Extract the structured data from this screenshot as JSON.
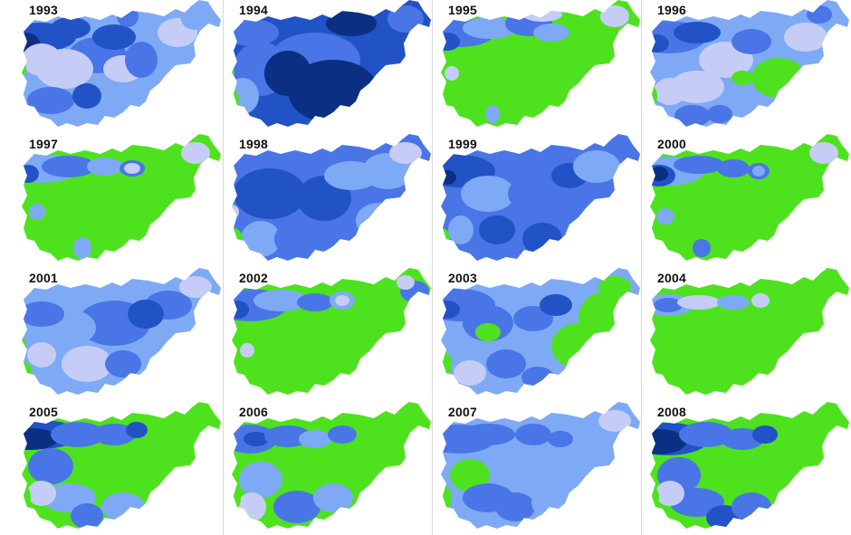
{
  "colors": {
    "c0": "#4ee21e",
    "c1": "#c5cdf6",
    "c2": "#7ea9f5",
    "c3": "#4a75e6",
    "c4": "#2152c6",
    "c5": "#0b2f82"
  },
  "panels": [
    {
      "year": "1993",
      "base": 2,
      "blobs": [
        [
          28,
          35,
          40,
          16,
          4
        ],
        [
          12,
          42,
          16,
          12,
          5
        ],
        [
          62,
          25,
          22,
          12,
          4
        ],
        [
          92,
          55,
          32,
          20,
          3
        ],
        [
          55,
          70,
          32,
          22,
          1
        ],
        [
          30,
          60,
          22,
          18,
          1
        ],
        [
          110,
          35,
          24,
          14,
          4
        ],
        [
          125,
          12,
          12,
          12,
          3
        ],
        [
          40,
          105,
          26,
          15,
          3
        ],
        [
          80,
          100,
          16,
          14,
          4
        ],
        [
          120,
          70,
          22,
          15,
          1
        ],
        [
          140,
          60,
          18,
          20,
          3
        ],
        [
          180,
          30,
          22,
          16,
          1
        ],
        [
          200,
          15,
          16,
          12,
          2
        ],
        [
          5,
          70,
          8,
          10,
          0
        ],
        [
          3,
          100,
          8,
          10,
          0
        ]
      ]
    },
    {
      "year": "1994",
      "base": 4,
      "blobs": [
        [
          100,
          60,
          50,
          30,
          3
        ],
        [
          40,
          70,
          30,
          30,
          3
        ],
        [
          120,
          95,
          50,
          35,
          5
        ],
        [
          140,
          20,
          28,
          14,
          5
        ],
        [
          70,
          75,
          26,
          25,
          5
        ],
        [
          30,
          30,
          30,
          15,
          3
        ],
        [
          20,
          100,
          18,
          20,
          2
        ],
        [
          200,
          15,
          20,
          15,
          3
        ],
        [
          8,
          105,
          8,
          12,
          0
        ],
        [
          5,
          75,
          6,
          8,
          0
        ]
      ]
    },
    {
      "year": "1995",
      "base": 0,
      "blobs": [
        [
          28,
          30,
          40,
          16,
          3
        ],
        [
          15,
          40,
          14,
          10,
          4
        ],
        [
          62,
          25,
          30,
          12,
          2
        ],
        [
          105,
          20,
          26,
          14,
          3
        ],
        [
          130,
          30,
          20,
          10,
          2
        ],
        [
          120,
          10,
          22,
          8,
          1
        ],
        [
          20,
          75,
          8,
          8,
          1
        ],
        [
          65,
          120,
          8,
          10,
          2
        ],
        [
          200,
          12,
          16,
          12,
          1
        ]
      ]
    },
    {
      "year": "1996",
      "base": 2,
      "blobs": [
        [
          28,
          35,
          42,
          18,
          3
        ],
        [
          15,
          42,
          14,
          10,
          4
        ],
        [
          60,
          30,
          26,
          12,
          4
        ],
        [
          92,
          60,
          30,
          20,
          1
        ],
        [
          60,
          90,
          30,
          18,
          1
        ],
        [
          120,
          40,
          22,
          14,
          3
        ],
        [
          150,
          80,
          30,
          22,
          0
        ],
        [
          110,
          80,
          12,
          8,
          0
        ],
        [
          180,
          35,
          24,
          16,
          1
        ],
        [
          195,
          10,
          14,
          10,
          3
        ],
        [
          55,
          122,
          20,
          12,
          3
        ],
        [
          85,
          120,
          14,
          10,
          3
        ],
        [
          30,
          95,
          18,
          15,
          1
        ],
        [
          8,
          100,
          8,
          12,
          0
        ]
      ]
    },
    {
      "year": "1997",
      "base": 0,
      "blobs": [
        [
          30,
          32,
          40,
          16,
          2
        ],
        [
          15,
          38,
          12,
          10,
          4
        ],
        [
          60,
          30,
          30,
          12,
          3
        ],
        [
          100,
          30,
          20,
          10,
          2
        ],
        [
          130,
          32,
          14,
          9,
          3
        ],
        [
          130,
          32,
          9,
          6,
          1
        ],
        [
          25,
          80,
          9,
          9,
          2
        ],
        [
          75,
          120,
          10,
          12,
          2
        ],
        [
          200,
          15,
          16,
          12,
          1
        ]
      ]
    },
    {
      "year": "1998",
      "base": 3,
      "blobs": [
        [
          50,
          60,
          40,
          28,
          4
        ],
        [
          110,
          65,
          30,
          25,
          4
        ],
        [
          140,
          40,
          30,
          16,
          2
        ],
        [
          180,
          35,
          28,
          20,
          2
        ],
        [
          200,
          15,
          18,
          12,
          1
        ],
        [
          170,
          90,
          25,
          20,
          2
        ],
        [
          40,
          110,
          22,
          20,
          2
        ],
        [
          80,
          110,
          25,
          20,
          3
        ],
        [
          10,
          110,
          10,
          12,
          0
        ],
        [
          8,
          80,
          8,
          8,
          1
        ]
      ]
    },
    {
      "year": "1999",
      "base": 3,
      "blobs": [
        [
          28,
          35,
          40,
          18,
          4
        ],
        [
          15,
          42,
          10,
          8,
          5
        ],
        [
          60,
          60,
          30,
          20,
          2
        ],
        [
          110,
          60,
          28,
          20,
          3
        ],
        [
          150,
          40,
          20,
          14,
          4
        ],
        [
          180,
          30,
          26,
          18,
          2
        ],
        [
          70,
          100,
          20,
          16,
          4
        ],
        [
          120,
          110,
          22,
          18,
          4
        ],
        [
          30,
          100,
          14,
          16,
          2
        ],
        [
          10,
          110,
          8,
          12,
          0
        ]
      ]
    },
    {
      "year": "2000",
      "base": 0,
      "blobs": [
        [
          28,
          35,
          40,
          16,
          2
        ],
        [
          18,
          40,
          18,
          12,
          4
        ],
        [
          18,
          38,
          10,
          8,
          5
        ],
        [
          62,
          28,
          28,
          10,
          3
        ],
        [
          100,
          32,
          18,
          10,
          3
        ],
        [
          128,
          35,
          12,
          9,
          3
        ],
        [
          128,
          35,
          7,
          6,
          2
        ],
        [
          25,
          85,
          10,
          9,
          2
        ],
        [
          65,
          120,
          10,
          10,
          3
        ],
        [
          200,
          15,
          16,
          12,
          1
        ]
      ]
    },
    {
      "year": "2001",
      "base": 2,
      "blobs": [
        [
          110,
          55,
          40,
          25,
          3
        ],
        [
          170,
          35,
          26,
          16,
          3
        ],
        [
          145,
          45,
          20,
          16,
          4
        ],
        [
          60,
          60,
          30,
          20,
          2
        ],
        [
          30,
          45,
          25,
          14,
          3
        ],
        [
          80,
          100,
          28,
          20,
          1
        ],
        [
          120,
          100,
          20,
          15,
          3
        ],
        [
          30,
          90,
          16,
          14,
          1
        ],
        [
          5,
          80,
          8,
          12,
          0
        ],
        [
          10,
          110,
          10,
          12,
          0
        ],
        [
          200,
          15,
          18,
          12,
          1
        ]
      ]
    },
    {
      "year": "2002",
      "base": 0,
      "blobs": [
        [
          28,
          35,
          42,
          18,
          3
        ],
        [
          15,
          40,
          12,
          10,
          4
        ],
        [
          62,
          30,
          30,
          12,
          2
        ],
        [
          100,
          32,
          20,
          10,
          3
        ],
        [
          130,
          30,
          14,
          10,
          2
        ],
        [
          130,
          30,
          8,
          6,
          1
        ],
        [
          210,
          20,
          16,
          12,
          3
        ],
        [
          25,
          85,
          8,
          8,
          1
        ],
        [
          200,
          10,
          10,
          8,
          1
        ]
      ]
    },
    {
      "year": "2003",
      "base": 2,
      "blobs": [
        [
          28,
          35,
          40,
          18,
          3
        ],
        [
          15,
          40,
          14,
          10,
          4
        ],
        [
          60,
          55,
          28,
          20,
          3
        ],
        [
          60,
          65,
          14,
          10,
          0
        ],
        [
          110,
          50,
          22,
          14,
          3
        ],
        [
          135,
          35,
          18,
          12,
          4
        ],
        [
          160,
          80,
          30,
          25,
          0
        ],
        [
          190,
          50,
          30,
          30,
          0
        ],
        [
          80,
          100,
          22,
          16,
          3
        ],
        [
          40,
          110,
          18,
          14,
          1
        ],
        [
          115,
          115,
          18,
          12,
          3
        ],
        [
          10,
          100,
          10,
          14,
          0
        ],
        [
          200,
          15,
          18,
          12,
          0
        ]
      ]
    },
    {
      "year": "2004",
      "base": 0,
      "blobs": [
        [
          28,
          35,
          28,
          12,
          2
        ],
        [
          28,
          35,
          16,
          8,
          3
        ],
        [
          62,
          32,
          24,
          8,
          1
        ],
        [
          100,
          32,
          18,
          8,
          2
        ],
        [
          130,
          30,
          10,
          8,
          1
        ]
      ]
    },
    {
      "year": "2005",
      "base": 0,
      "blobs": [
        [
          28,
          30,
          45,
          16,
          4
        ],
        [
          18,
          35,
          30,
          12,
          5
        ],
        [
          70,
          30,
          30,
          14,
          3
        ],
        [
          110,
          30,
          24,
          12,
          3
        ],
        [
          135,
          25,
          12,
          9,
          4
        ],
        [
          40,
          65,
          25,
          20,
          3
        ],
        [
          60,
          100,
          30,
          16,
          2
        ],
        [
          80,
          120,
          18,
          14,
          3
        ],
        [
          120,
          110,
          24,
          16,
          2
        ],
        [
          30,
          95,
          16,
          14,
          1
        ],
        [
          10,
          100,
          8,
          14,
          0
        ],
        [
          200,
          15,
          16,
          12,
          0
        ]
      ]
    },
    {
      "year": "2006",
      "base": 0,
      "blobs": [
        [
          28,
          35,
          30,
          16,
          3
        ],
        [
          35,
          35,
          14,
          8,
          4
        ],
        [
          70,
          32,
          26,
          12,
          3
        ],
        [
          100,
          35,
          18,
          10,
          2
        ],
        [
          130,
          30,
          16,
          10,
          3
        ],
        [
          40,
          80,
          24,
          20,
          2
        ],
        [
          80,
          110,
          26,
          18,
          3
        ],
        [
          120,
          100,
          22,
          16,
          2
        ],
        [
          30,
          110,
          16,
          16,
          1
        ],
        [
          10,
          100,
          8,
          14,
          0
        ],
        [
          200,
          15,
          16,
          12,
          0
        ]
      ]
    },
    {
      "year": "2007",
      "base": 2,
      "blobs": [
        [
          28,
          35,
          40,
          16,
          3
        ],
        [
          60,
          30,
          30,
          12,
          3
        ],
        [
          110,
          30,
          20,
          12,
          3
        ],
        [
          140,
          35,
          14,
          9,
          3
        ],
        [
          40,
          75,
          22,
          18,
          0
        ],
        [
          60,
          100,
          28,
          16,
          3
        ],
        [
          90,
          110,
          22,
          16,
          3
        ],
        [
          130,
          105,
          22,
          18,
          2
        ],
        [
          160,
          70,
          32,
          25,
          2
        ],
        [
          10,
          100,
          10,
          14,
          0
        ],
        [
          200,
          15,
          18,
          12,
          1
        ]
      ]
    },
    {
      "year": "2008",
      "base": 0,
      "blobs": [
        [
          28,
          35,
          45,
          18,
          4
        ],
        [
          18,
          38,
          30,
          14,
          5
        ],
        [
          70,
          30,
          30,
          14,
          3
        ],
        [
          110,
          35,
          24,
          12,
          3
        ],
        [
          135,
          30,
          14,
          10,
          4
        ],
        [
          40,
          75,
          24,
          20,
          3
        ],
        [
          60,
          105,
          30,
          16,
          3
        ],
        [
          90,
          122,
          20,
          14,
          4
        ],
        [
          120,
          110,
          22,
          16,
          3
        ],
        [
          30,
          95,
          16,
          14,
          1
        ],
        [
          10,
          100,
          8,
          14,
          0
        ],
        [
          200,
          15,
          16,
          12,
          0
        ]
      ]
    }
  ]
}
